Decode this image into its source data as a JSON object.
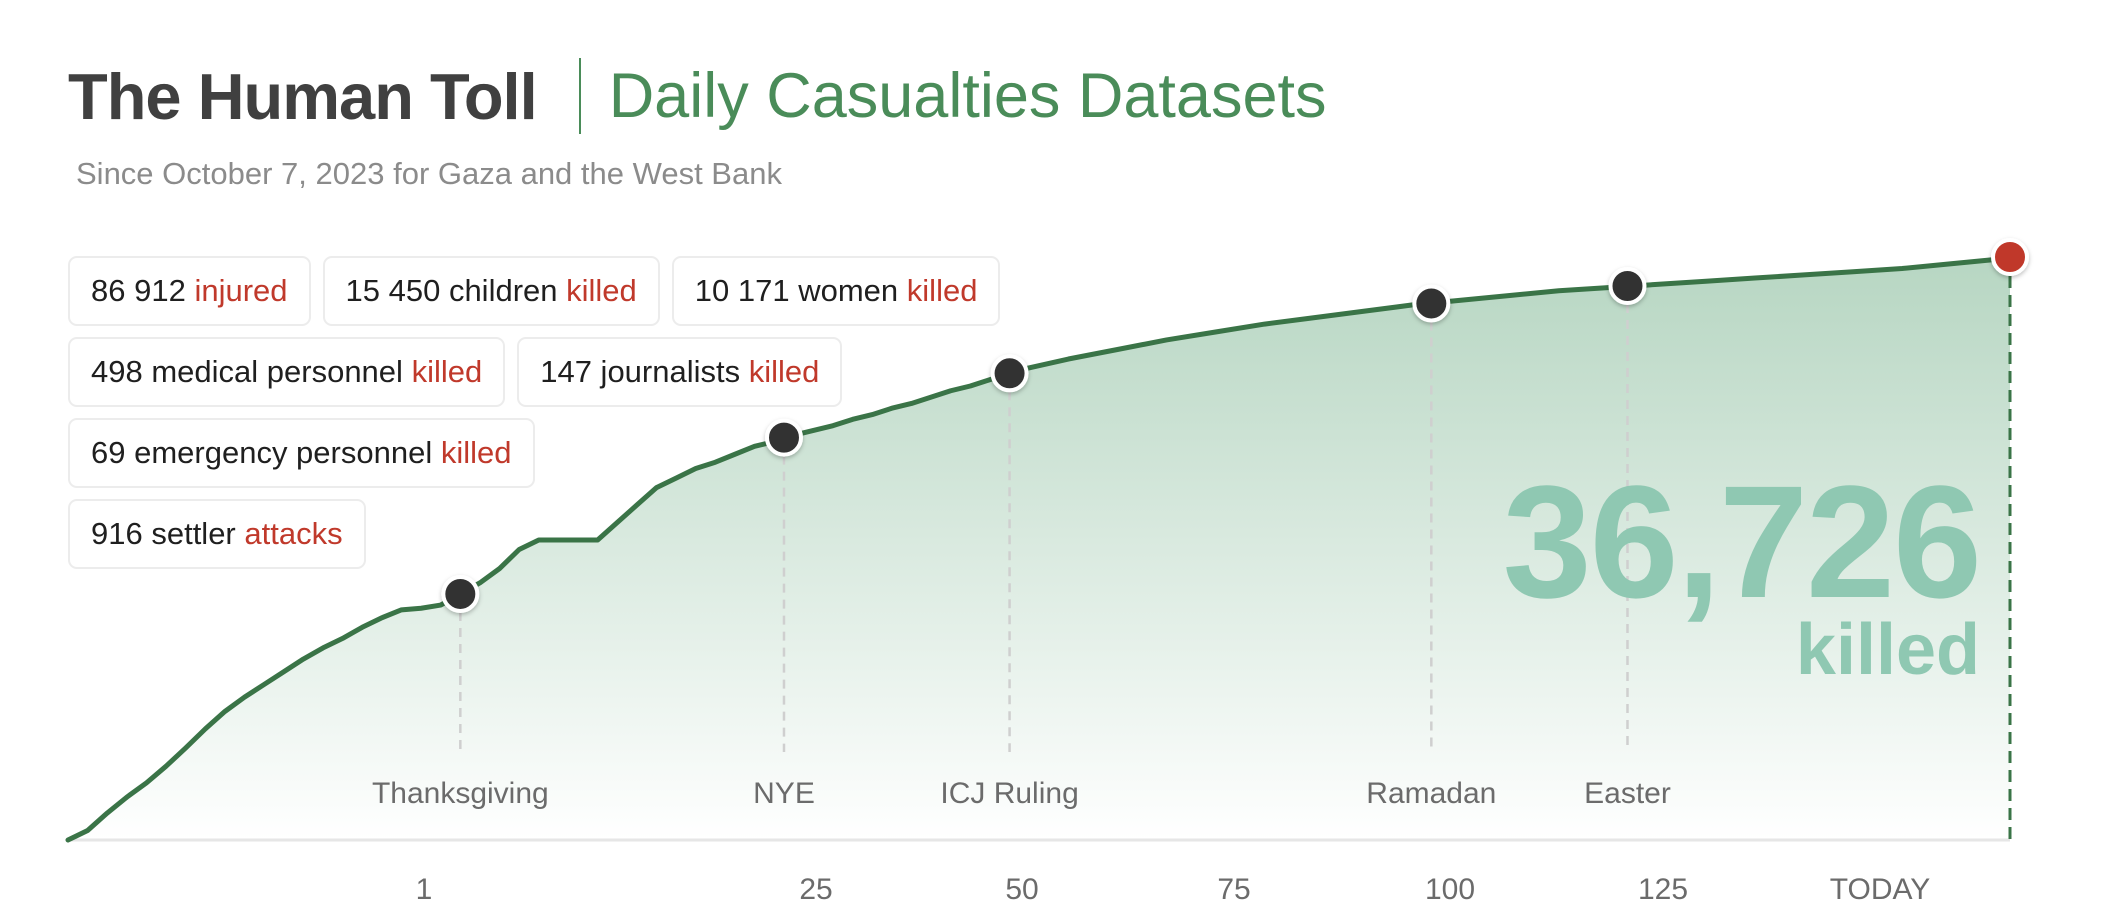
{
  "header": {
    "title": "The Human Toll",
    "subtitle": "Daily Casualties Datasets",
    "since": "Since October 7, 2023 for Gaza and the West Bank"
  },
  "stats": [
    [
      {
        "value": "86 912",
        "label": "injured"
      },
      {
        "value": "15 450 children",
        "label": "killed"
      },
      {
        "value": "10 171 women",
        "label": "killed"
      }
    ],
    [
      {
        "value": "498 medical personnel",
        "label": "killed"
      },
      {
        "value": "147 journalists",
        "label": "killed"
      }
    ],
    [
      {
        "value": "69 emergency personnel",
        "label": "killed"
      }
    ],
    [
      {
        "value": "916 settler",
        "label": "attacks"
      }
    ]
  ],
  "total": {
    "number": "36,726",
    "label": "killed"
  },
  "chart_data": {
    "type": "area",
    "x_ticks": [
      "1",
      "25",
      "50",
      "75",
      "100",
      "125",
      "TODAY"
    ],
    "series": [
      {
        "points": [
          [
            -47,
            0
          ],
          [
            -45,
            600
          ],
          [
            -43,
            1700
          ],
          [
            -41,
            2700
          ],
          [
            -39,
            3600
          ],
          [
            -37,
            4650
          ],
          [
            -35,
            5800
          ],
          [
            -33,
            7000
          ],
          [
            -31,
            8100
          ],
          [
            -29,
            9000
          ],
          [
            -27,
            9800
          ],
          [
            -25,
            10600
          ],
          [
            -23,
            11400
          ],
          [
            -21,
            12100
          ],
          [
            -19,
            12700
          ],
          [
            -17,
            13400
          ],
          [
            -15,
            14000
          ],
          [
            -13,
            14500
          ],
          [
            -11,
            14600
          ],
          [
            -9,
            14800
          ],
          [
            -7,
            15500
          ],
          [
            -5,
            16200
          ],
          [
            -3,
            17100
          ],
          [
            -1,
            18300
          ],
          [
            1,
            18900
          ],
          [
            3,
            18900
          ],
          [
            5,
            18900
          ],
          [
            7,
            18900
          ],
          [
            9,
            20000
          ],
          [
            11,
            21100
          ],
          [
            13,
            22200
          ],
          [
            15,
            22800
          ],
          [
            17,
            23400
          ],
          [
            19,
            23800
          ],
          [
            21,
            24300
          ],
          [
            23,
            24800
          ],
          [
            25,
            25100
          ],
          [
            27,
            25500
          ],
          [
            29,
            25800
          ],
          [
            31,
            26100
          ],
          [
            33,
            26500
          ],
          [
            35,
            26800
          ],
          [
            37,
            27200
          ],
          [
            39,
            27500
          ],
          [
            41,
            27900
          ],
          [
            43,
            28300
          ],
          [
            45,
            28600
          ],
          [
            50,
            29600
          ],
          [
            55,
            30300
          ],
          [
            60,
            30900
          ],
          [
            65,
            31500
          ],
          [
            70,
            32000
          ],
          [
            75,
            32500
          ],
          [
            80,
            32900
          ],
          [
            85,
            33300
          ],
          [
            90,
            33700
          ],
          [
            95,
            34000
          ],
          [
            100,
            34300
          ],
          [
            105,
            34600
          ],
          [
            110,
            34800
          ],
          [
            115,
            35000
          ],
          [
            120,
            35200
          ],
          [
            125,
            35400
          ],
          [
            130,
            35600
          ],
          [
            135,
            35800
          ],
          [
            140,
            36000
          ],
          [
            145,
            36300
          ],
          [
            150,
            36600
          ],
          [
            151,
            36726
          ]
        ]
      }
    ],
    "events": [
      {
        "label": "Thanksgiving",
        "x": -7,
        "y": 15500
      },
      {
        "label": "NYE",
        "x": 26,
        "y": 25350
      },
      {
        "label": "ICJ Ruling",
        "x": 49,
        "y": 29400
      },
      {
        "label": "Ramadan",
        "x": 92,
        "y": 33800
      },
      {
        "label": "Easter",
        "x": 112,
        "y": 34900
      }
    ],
    "end_point": {
      "x": 151,
      "y": 36726
    },
    "colors": {
      "line": "#3a7447",
      "marker": "#333333",
      "end_marker": "#c0392b",
      "fill_top": "#b3d4bf",
      "fill_bottom": "#ffffff"
    }
  }
}
